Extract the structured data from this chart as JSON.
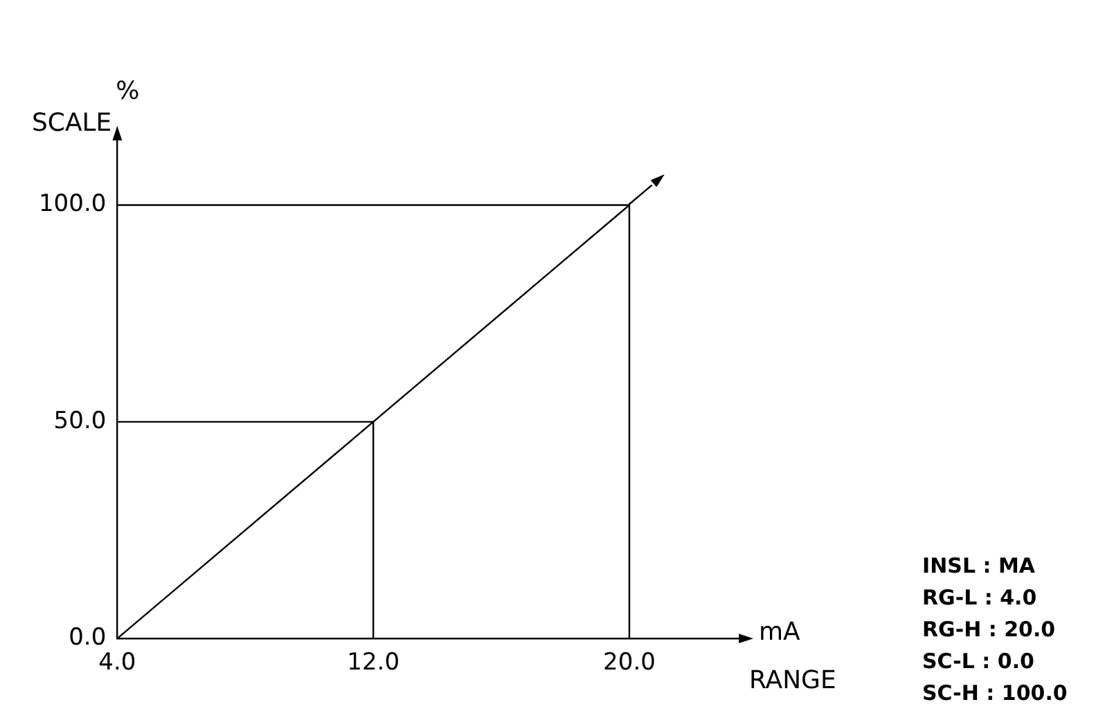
{
  "chart_data": {
    "type": "line",
    "xlabel": "RANGE",
    "ylabel": "SCALE",
    "xlim": [
      4,
      23.7
    ],
    "ylim": [
      0,
      117
    ],
    "xticks": [
      {
        "value": 4,
        "label": "4.0"
      },
      {
        "value": 12,
        "label": "12.0"
      },
      {
        "value": 20,
        "label": "20.0"
      }
    ],
    "yticks": [
      {
        "value": 0,
        "label": "0.0"
      },
      {
        "value": 50,
        "label": "50.0"
      },
      {
        "value": 100,
        "label": "100.0"
      }
    ],
    "grid": false,
    "legend": false,
    "marker": "none",
    "line_style": "solid",
    "series": [
      {
        "color": "#000000",
        "x": [
          4,
          12,
          20
        ],
        "values": [
          0,
          50,
          100
        ]
      },
      {
        "color": "#000000",
        "x": [
          4,
          12,
          12
        ],
        "values": [
          50,
          50,
          0
        ]
      },
      {
        "color": "#000000",
        "x": [
          4,
          20,
          20
        ],
        "values": [
          100,
          100,
          0
        ]
      }
    ],
    "annotations": [
      "%",
      "mA",
      "INSL : MA",
      "RG-L : 4.0",
      "RG-H : 20.0",
      "SC-L : 0.0",
      "SC-H : 100.0"
    ]
  }
}
